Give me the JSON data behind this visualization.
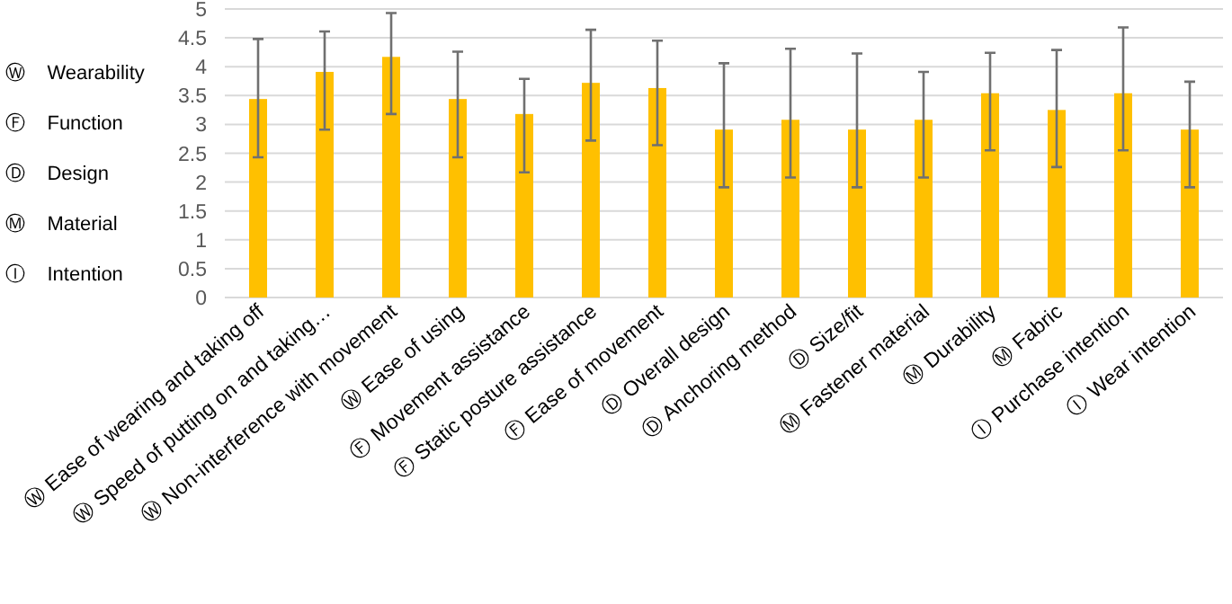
{
  "chart_data": {
    "type": "bar",
    "categories": [
      "Ⓦ Ease of wearing and taking off",
      "Ⓦ Speed of putting on and taking…",
      "Ⓦ Non-interference with movement",
      "Ⓦ Ease of using",
      "Ⓕ Movement assistance",
      "Ⓕ Static posture assistance",
      "Ⓕ Ease of movement",
      "Ⓓ Overall design",
      "Ⓓ Anchoring method",
      "Ⓓ Size/fit",
      "Ⓜ Fastener material",
      "Ⓜ Durability",
      "Ⓜ Fabric",
      "Ⓘ Purchase intention",
      "Ⓘ Wear intention"
    ],
    "values": [
      3.44,
      3.91,
      4.17,
      3.44,
      3.18,
      3.72,
      3.63,
      2.91,
      3.08,
      2.91,
      3.08,
      3.54,
      3.25,
      3.54,
      2.91
    ],
    "errors": [
      [
        2.43,
        4.48
      ],
      [
        2.91,
        4.61
      ],
      [
        3.18,
        4.93
      ],
      [
        2.43,
        4.26
      ],
      [
        2.17,
        3.79
      ],
      [
        2.72,
        4.64
      ],
      [
        2.64,
        4.45
      ],
      [
        1.91,
        4.06
      ],
      [
        2.08,
        4.31
      ],
      [
        1.91,
        4.23
      ],
      [
        2.08,
        3.91
      ],
      [
        2.55,
        4.24
      ],
      [
        2.26,
        4.29
      ],
      [
        2.55,
        4.68
      ],
      [
        1.91,
        3.74
      ]
    ],
    "color": "#ffc000",
    "ylim": [
      0,
      5
    ],
    "yticks": [
      0,
      0.5,
      1,
      1.5,
      2,
      2.5,
      3,
      3.5,
      4,
      4.5,
      5
    ],
    "grid": "y",
    "annotations": [
      "Ⓦ    Wearability",
      "Ⓕ    Function",
      "Ⓓ    Design",
      "Ⓜ    Material",
      "Ⓘ    Intention"
    ]
  }
}
